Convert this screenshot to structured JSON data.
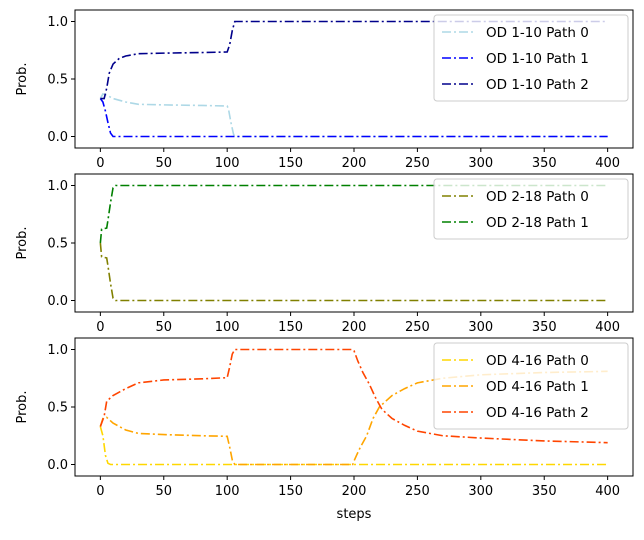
{
  "chart_data": [
    {
      "type": "line",
      "ylabel": "Prob.",
      "xlabel": "",
      "xlim": [
        -20,
        420
      ],
      "ylim": [
        -0.1,
        1.1
      ],
      "xticks": [
        0,
        50,
        100,
        150,
        200,
        250,
        300,
        350,
        400
      ],
      "yticks": [
        0.0,
        0.5,
        1.0
      ],
      "ytick_labels": [
        "0.0",
        "0.5",
        "1.0"
      ],
      "legend": "top-right",
      "line_style": "dash-dot",
      "series": [
        {
          "name": "OD 1-10 Path 0",
          "color": "#add8e6",
          "points": [
            [
              0,
              0.33
            ],
            [
              2,
              0.37
            ],
            [
              5,
              0.36
            ],
            [
              10,
              0.33
            ],
            [
              20,
              0.3
            ],
            [
              30,
              0.28
            ],
            [
              50,
              0.275
            ],
            [
              80,
              0.27
            ],
            [
              100,
              0.265
            ],
            [
              101,
              0.24
            ],
            [
              103,
              0.12
            ],
            [
              105,
              0.02
            ],
            [
              106,
              0.0
            ],
            [
              150,
              0.0
            ],
            [
              200,
              0.0
            ],
            [
              300,
              0.0
            ],
            [
              400,
              0.0
            ]
          ]
        },
        {
          "name": "OD 1-10 Path 1",
          "color": "#0000ff",
          "points": [
            [
              0,
              0.33
            ],
            [
              2,
              0.3
            ],
            [
              4,
              0.22
            ],
            [
              6,
              0.12
            ],
            [
              8,
              0.03
            ],
            [
              10,
              0.0
            ],
            [
              50,
              0.0
            ],
            [
              100,
              0.0
            ],
            [
              200,
              0.0
            ],
            [
              300,
              0.0
            ],
            [
              400,
              0.0
            ]
          ]
        },
        {
          "name": "OD 1-10 Path 2",
          "color": "#00008b",
          "points": [
            [
              0,
              0.33
            ],
            [
              3,
              0.33
            ],
            [
              5,
              0.42
            ],
            [
              7,
              0.55
            ],
            [
              10,
              0.63
            ],
            [
              15,
              0.68
            ],
            [
              20,
              0.7
            ],
            [
              30,
              0.72
            ],
            [
              50,
              0.725
            ],
            [
              80,
              0.73
            ],
            [
              100,
              0.735
            ],
            [
              102,
              0.8
            ],
            [
              104,
              0.92
            ],
            [
              106,
              1.0
            ],
            [
              150,
              1.0
            ],
            [
              200,
              1.0
            ],
            [
              300,
              1.0
            ],
            [
              400,
              1.0
            ]
          ]
        }
      ]
    },
    {
      "type": "line",
      "ylabel": "Prob.",
      "xlabel": "",
      "xlim": [
        -20,
        420
      ],
      "ylim": [
        -0.1,
        1.1
      ],
      "xticks": [
        0,
        50,
        100,
        150,
        200,
        250,
        300,
        350,
        400
      ],
      "yticks": [
        0.0,
        0.5,
        1.0
      ],
      "ytick_labels": [
        "0.0",
        "0.5",
        "1.0"
      ],
      "legend": "top-right",
      "line_style": "dash-dot",
      "series": [
        {
          "name": "OD 2-18 Path 0",
          "color": "#808000",
          "points": [
            [
              0,
              0.5
            ],
            [
              1,
              0.38
            ],
            [
              5,
              0.37
            ],
            [
              6,
              0.3
            ],
            [
              8,
              0.15
            ],
            [
              10,
              0.02
            ],
            [
              12,
              0.0
            ],
            [
              50,
              0.0
            ],
            [
              100,
              0.0
            ],
            [
              200,
              0.0
            ],
            [
              300,
              0.0
            ],
            [
              400,
              0.0
            ]
          ]
        },
        {
          "name": "OD 2-18 Path 1",
          "color": "#008000",
          "points": [
            [
              0,
              0.5
            ],
            [
              1,
              0.62
            ],
            [
              5,
              0.63
            ],
            [
              6,
              0.7
            ],
            [
              8,
              0.85
            ],
            [
              10,
              0.98
            ],
            [
              12,
              1.0
            ],
            [
              50,
              1.0
            ],
            [
              100,
              1.0
            ],
            [
              200,
              1.0
            ],
            [
              300,
              1.0
            ],
            [
              400,
              1.0
            ]
          ]
        }
      ]
    },
    {
      "type": "line",
      "ylabel": "Prob.",
      "xlabel": "steps",
      "xlim": [
        -20,
        420
      ],
      "ylim": [
        -0.1,
        1.1
      ],
      "xticks": [
        0,
        50,
        100,
        150,
        200,
        250,
        300,
        350,
        400
      ],
      "yticks": [
        0.0,
        0.5,
        1.0
      ],
      "ytick_labels": [
        "0.0",
        "0.5",
        "1.0"
      ],
      "legend": "top-right",
      "line_style": "dash-dot",
      "series": [
        {
          "name": "OD 4-16 Path 0",
          "color": "#ffd700",
          "points": [
            [
              0,
              0.33
            ],
            [
              2,
              0.25
            ],
            [
              4,
              0.08
            ],
            [
              6,
              0.01
            ],
            [
              8,
              0.0
            ],
            [
              50,
              0.0
            ],
            [
              100,
              0.0
            ],
            [
              200,
              0.0
            ],
            [
              300,
              0.0
            ],
            [
              400,
              0.0
            ]
          ]
        },
        {
          "name": "OD 4-16 Path 1",
          "color": "#ffa500",
          "points": [
            [
              0,
              0.33
            ],
            [
              2,
              0.4
            ],
            [
              5,
              0.41
            ],
            [
              10,
              0.36
            ],
            [
              20,
              0.3
            ],
            [
              30,
              0.27
            ],
            [
              50,
              0.26
            ],
            [
              80,
              0.25
            ],
            [
              100,
              0.245
            ],
            [
              102,
              0.15
            ],
            [
              104,
              0.04
            ],
            [
              106,
              0.0
            ],
            [
              150,
              0.0
            ],
            [
              199,
              0.0
            ],
            [
              200,
              0.03
            ],
            [
              202,
              0.08
            ],
            [
              205,
              0.15
            ],
            [
              210,
              0.25
            ],
            [
              215,
              0.4
            ],
            [
              220,
              0.5
            ],
            [
              225,
              0.55
            ],
            [
              230,
              0.6
            ],
            [
              240,
              0.66
            ],
            [
              250,
              0.71
            ],
            [
              270,
              0.75
            ],
            [
              300,
              0.78
            ],
            [
              350,
              0.8
            ],
            [
              400,
              0.81
            ]
          ]
        },
        {
          "name": "OD 4-16 Path 2",
          "color": "#ff4500",
          "points": [
            [
              0,
              0.33
            ],
            [
              3,
              0.42
            ],
            [
              5,
              0.55
            ],
            [
              10,
              0.6
            ],
            [
              20,
              0.66
            ],
            [
              30,
              0.71
            ],
            [
              50,
              0.735
            ],
            [
              80,
              0.745
            ],
            [
              100,
              0.755
            ],
            [
              102,
              0.85
            ],
            [
              104,
              0.96
            ],
            [
              106,
              1.0
            ],
            [
              150,
              1.0
            ],
            [
              199,
              1.0
            ],
            [
              200,
              0.99
            ],
            [
              203,
              0.9
            ],
            [
              207,
              0.8
            ],
            [
              212,
              0.7
            ],
            [
              217,
              0.58
            ],
            [
              222,
              0.48
            ],
            [
              230,
              0.4
            ],
            [
              240,
              0.34
            ],
            [
              250,
              0.29
            ],
            [
              270,
              0.25
            ],
            [
              300,
              0.23
            ],
            [
              350,
              0.205
            ],
            [
              400,
              0.19
            ]
          ]
        }
      ]
    }
  ]
}
